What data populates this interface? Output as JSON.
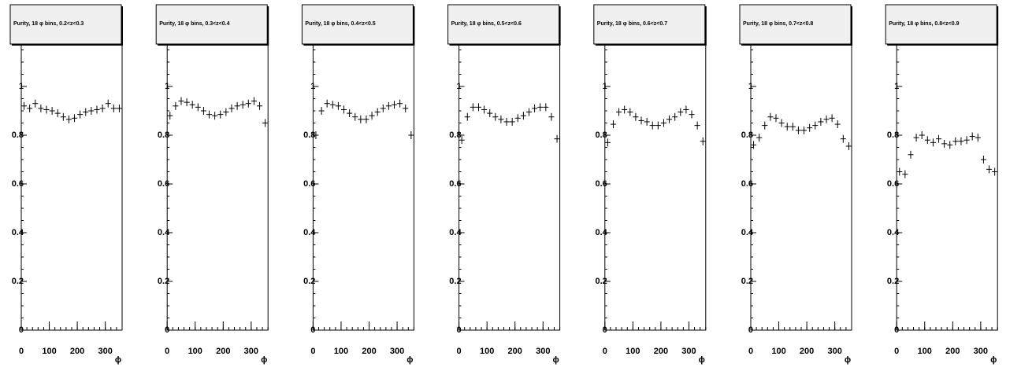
{
  "chart_data": [
    {
      "type": "scatter",
      "title": "Purity, 18 φ bins, 0.2<z<0.3",
      "x_label": "ϕ",
      "xlim": [
        0,
        360
      ],
      "xticks": [
        0,
        100,
        200,
        300
      ],
      "ylim": [
        0,
        1.2
      ],
      "yticks": [
        0,
        0.2,
        0.4,
        0.6,
        0.8,
        1
      ],
      "color": "#000000",
      "x": [
        10,
        30,
        50,
        70,
        90,
        110,
        130,
        150,
        170,
        190,
        210,
        230,
        250,
        270,
        290,
        310,
        330,
        350
      ],
      "values": [
        0.92,
        0.91,
        0.93,
        0.91,
        0.905,
        0.9,
        0.89,
        0.875,
        0.865,
        0.87,
        0.885,
        0.895,
        0.9,
        0.905,
        0.91,
        0.93,
        0.91,
        0.91
      ]
    },
    {
      "type": "scatter",
      "title": "Purity, 18 φ bins, 0.3<z<0.4",
      "x_label": "ϕ",
      "xlim": [
        0,
        360
      ],
      "xticks": [
        0,
        100,
        200,
        300
      ],
      "ylim": [
        0,
        1.2
      ],
      "yticks": [
        0,
        0.2,
        0.4,
        0.6,
        0.8,
        1
      ],
      "color": "#000000",
      "x": [
        10,
        30,
        50,
        70,
        90,
        110,
        130,
        150,
        170,
        190,
        210,
        230,
        250,
        270,
        290,
        310,
        330,
        350
      ],
      "values": [
        0.88,
        0.92,
        0.94,
        0.935,
        0.925,
        0.915,
        0.9,
        0.885,
        0.88,
        0.885,
        0.895,
        0.91,
        0.92,
        0.925,
        0.93,
        0.94,
        0.92,
        0.85
      ]
    },
    {
      "type": "scatter",
      "title": "Purity, 18 φ bins, 0.4<z<0.5",
      "x_label": "ϕ",
      "xlim": [
        0,
        360
      ],
      "xticks": [
        0,
        100,
        200,
        300
      ],
      "ylim": [
        0,
        1.2
      ],
      "yticks": [
        0,
        0.2,
        0.4,
        0.6,
        0.8,
        1
      ],
      "color": "#000000",
      "x": [
        10,
        30,
        50,
        70,
        90,
        110,
        130,
        150,
        170,
        190,
        210,
        230,
        250,
        270,
        290,
        310,
        330,
        350
      ],
      "values": [
        0.8,
        0.9,
        0.93,
        0.925,
        0.92,
        0.905,
        0.89,
        0.875,
        0.865,
        0.865,
        0.88,
        0.895,
        0.91,
        0.92,
        0.925,
        0.93,
        0.91,
        0.8
      ]
    },
    {
      "type": "scatter",
      "title": "Purity, 18 φ bins, 0.5<z<0.6",
      "x_label": "ϕ",
      "xlim": [
        0,
        360
      ],
      "xticks": [
        0,
        100,
        200,
        300
      ],
      "ylim": [
        0,
        1.2
      ],
      "yticks": [
        0,
        0.2,
        0.4,
        0.6,
        0.8,
        1
      ],
      "color": "#000000",
      "x": [
        10,
        30,
        50,
        70,
        90,
        110,
        130,
        150,
        170,
        190,
        210,
        230,
        250,
        270,
        290,
        310,
        330,
        350
      ],
      "values": [
        0.78,
        0.875,
        0.915,
        0.915,
        0.905,
        0.89,
        0.875,
        0.865,
        0.855,
        0.855,
        0.87,
        0.88,
        0.895,
        0.91,
        0.915,
        0.915,
        0.875,
        0.785
      ]
    },
    {
      "type": "scatter",
      "title": "Purity, 18 φ bins, 0.6<z<0.7",
      "x_label": "ϕ",
      "xlim": [
        0,
        360
      ],
      "xticks": [
        0,
        100,
        200,
        300
      ],
      "ylim": [
        0,
        1.2
      ],
      "yticks": [
        0,
        0.2,
        0.4,
        0.6,
        0.8,
        1
      ],
      "color": "#000000",
      "x": [
        10,
        30,
        50,
        70,
        90,
        110,
        130,
        150,
        170,
        190,
        210,
        230,
        250,
        270,
        290,
        310,
        330,
        350
      ],
      "values": [
        0.77,
        0.845,
        0.895,
        0.905,
        0.895,
        0.875,
        0.86,
        0.855,
        0.84,
        0.84,
        0.85,
        0.865,
        0.875,
        0.895,
        0.905,
        0.885,
        0.84,
        0.775
      ]
    },
    {
      "type": "scatter",
      "title": "Purity, 18 φ bins, 0.7<z<0.8",
      "x_label": "ϕ",
      "xlim": [
        0,
        360
      ],
      "xticks": [
        0,
        100,
        200,
        300
      ],
      "ylim": [
        0,
        1.2
      ],
      "yticks": [
        0,
        0.2,
        0.4,
        0.6,
        0.8,
        1
      ],
      "color": "#000000",
      "x": [
        10,
        30,
        50,
        70,
        90,
        110,
        130,
        150,
        170,
        190,
        210,
        230,
        250,
        270,
        290,
        310,
        330,
        350
      ],
      "values": [
        0.76,
        0.79,
        0.84,
        0.875,
        0.87,
        0.85,
        0.835,
        0.835,
        0.82,
        0.82,
        0.83,
        0.84,
        0.855,
        0.865,
        0.87,
        0.845,
        0.785,
        0.755
      ]
    },
    {
      "type": "scatter",
      "title": "Purity, 18 φ bins, 0.8<z<0.9",
      "x_label": "ϕ",
      "xlim": [
        0,
        360
      ],
      "xticks": [
        0,
        100,
        200,
        300
      ],
      "ylim": [
        0,
        1.2
      ],
      "yticks": [
        0,
        0.2,
        0.4,
        0.6,
        0.8,
        1
      ],
      "color": "#000000",
      "x": [
        10,
        30,
        50,
        70,
        90,
        110,
        130,
        150,
        170,
        190,
        210,
        230,
        250,
        270,
        290,
        310,
        330,
        350
      ],
      "values": [
        0.65,
        0.64,
        0.72,
        0.79,
        0.8,
        0.78,
        0.77,
        0.785,
        0.765,
        0.76,
        0.775,
        0.775,
        0.78,
        0.795,
        0.79,
        0.7,
        0.66,
        0.65
      ]
    }
  ]
}
